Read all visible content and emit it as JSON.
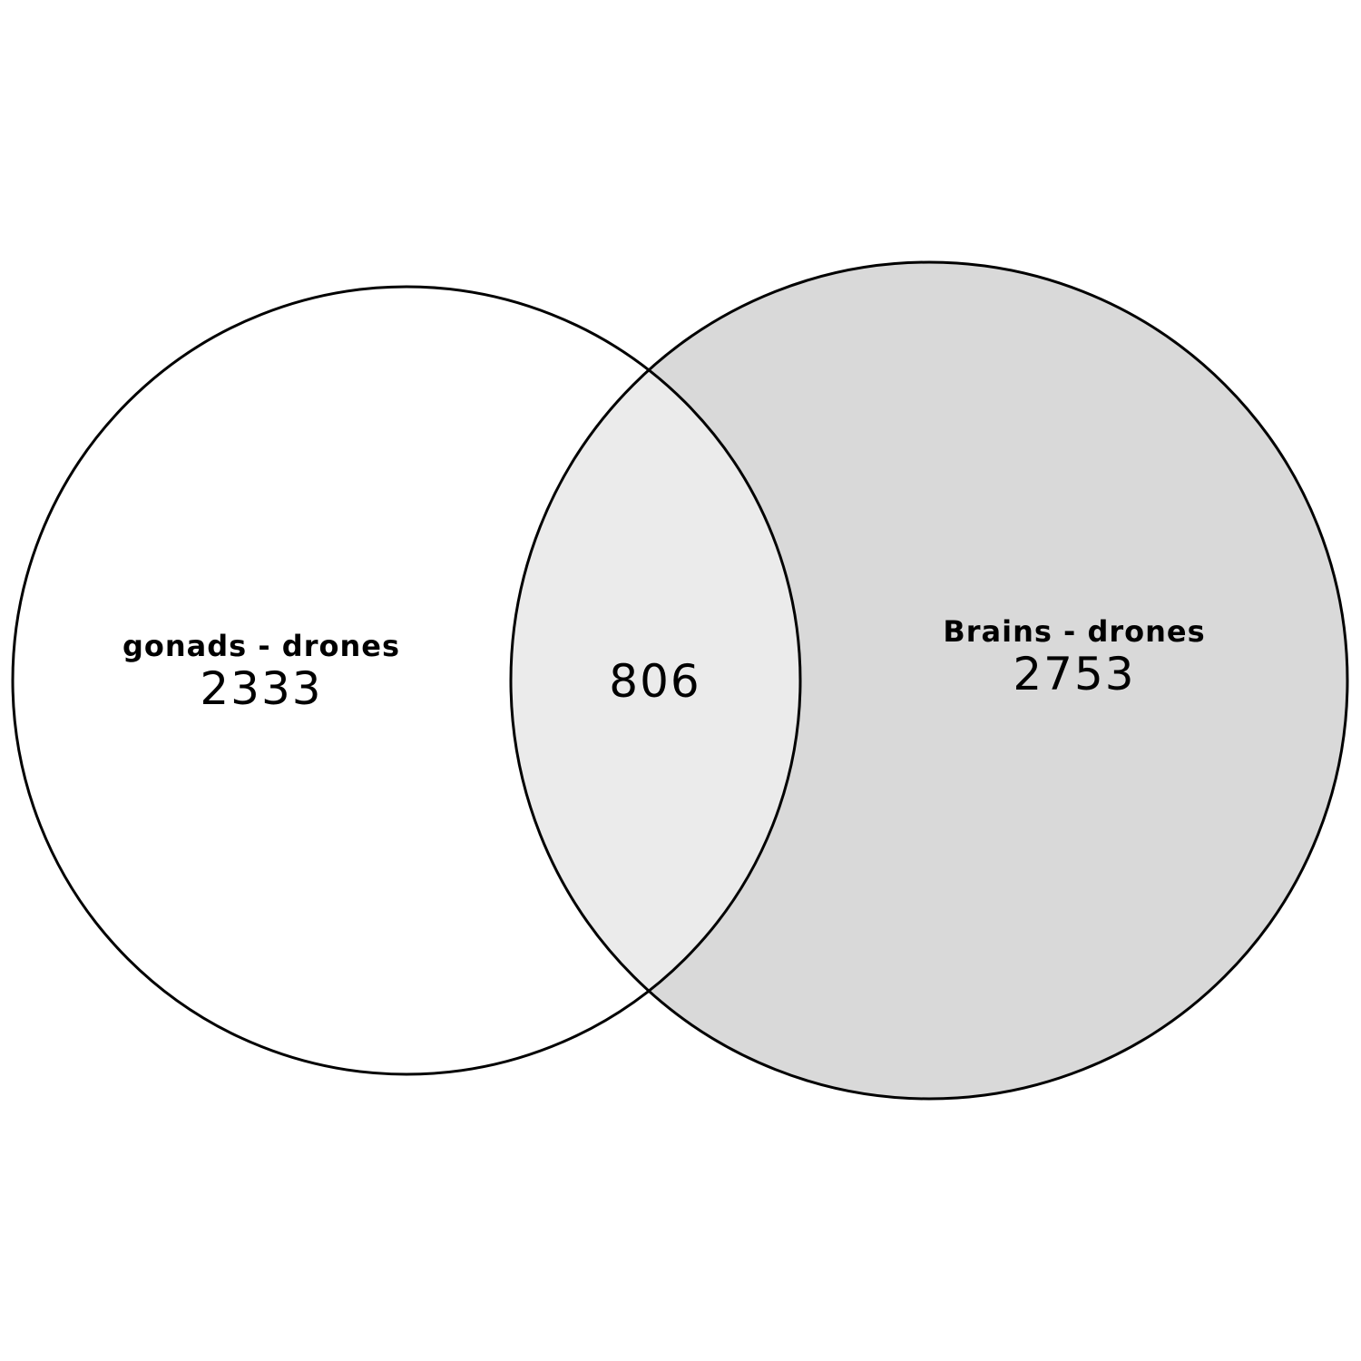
{
  "chart_data": {
    "type": "venn",
    "sets": [
      {
        "name": "gonads - drones",
        "only_count": "2333",
        "fill": "#ffffff"
      },
      {
        "name": "Brains - drones",
        "only_count": "2753",
        "fill": "#d9d9d9"
      }
    ],
    "intersection": {
      "count": "806",
      "fill": "#ebebeb"
    },
    "outline_color": "#000000"
  }
}
